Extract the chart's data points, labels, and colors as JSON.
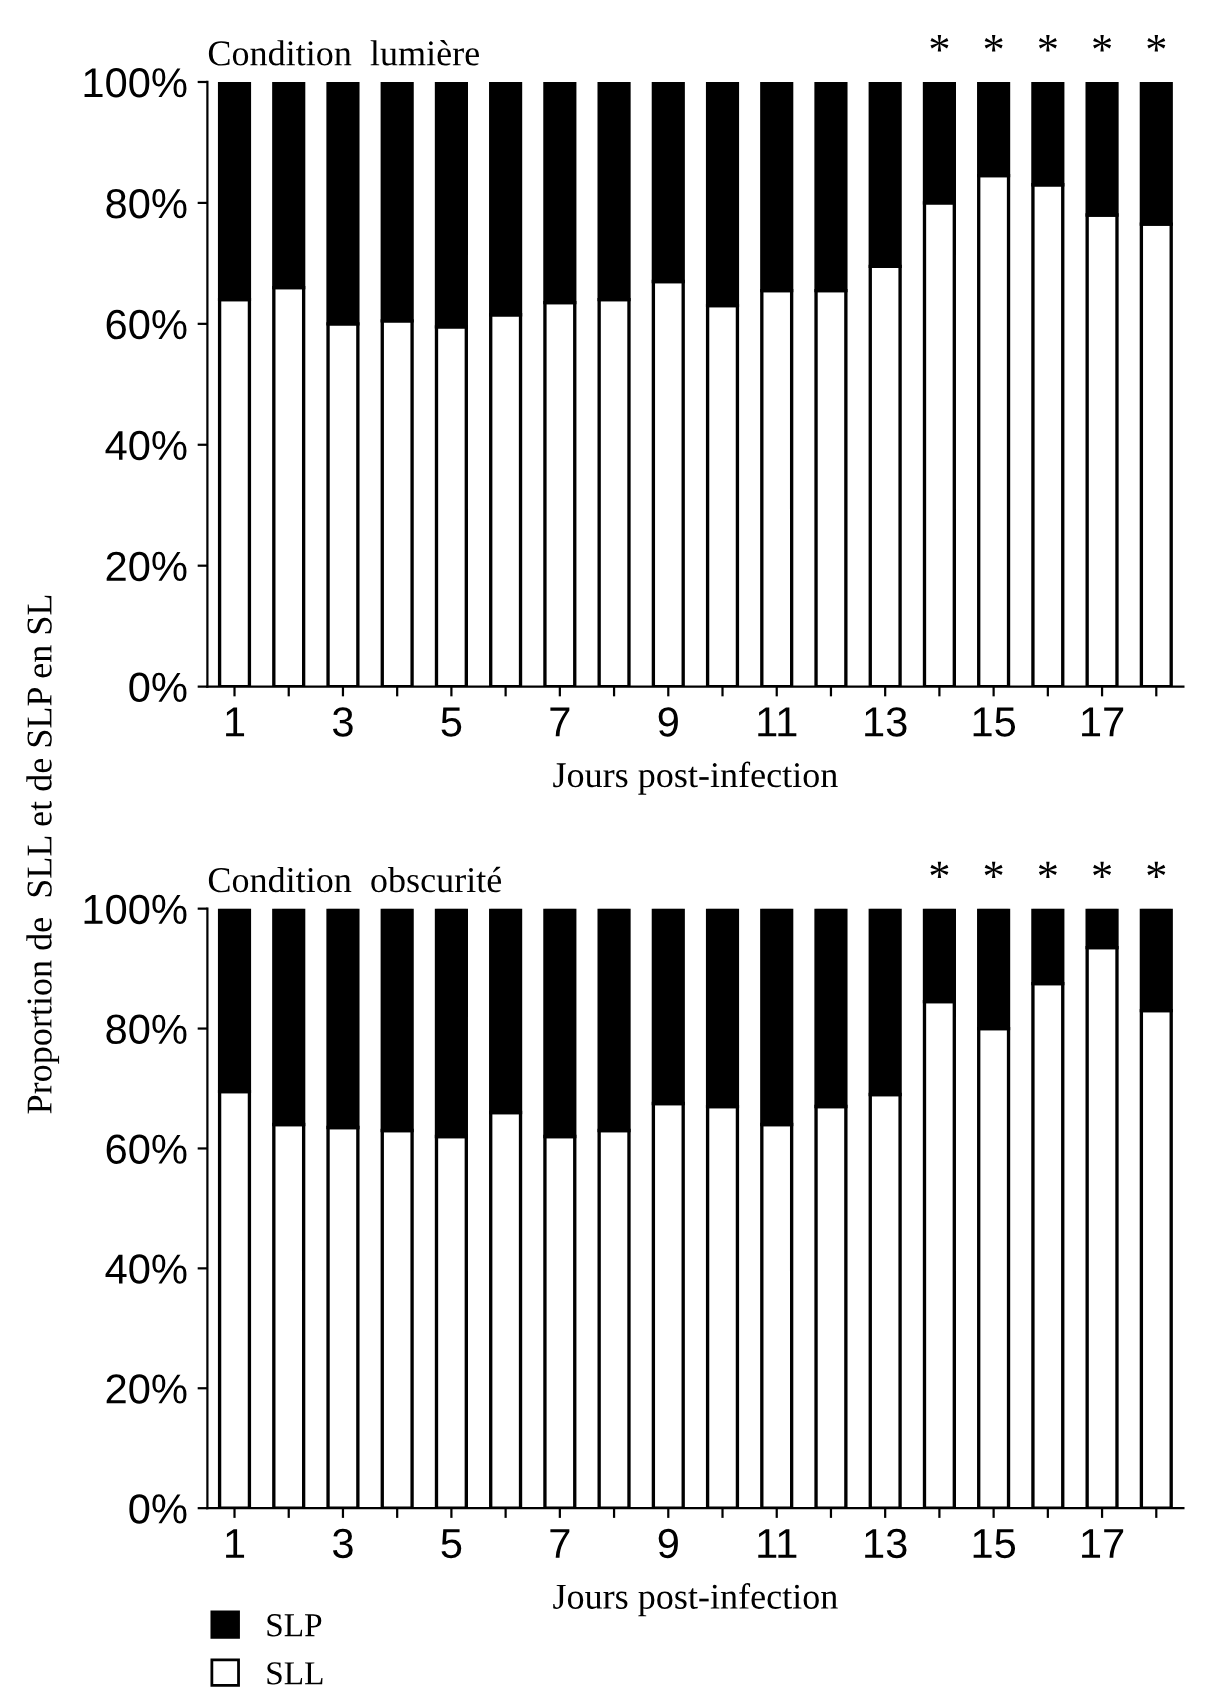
{
  "chart_data": [
    {
      "type": "bar",
      "stacked": true,
      "title": "Condition  lumière",
      "xlabel": "Jours post-infection",
      "ylabel": "Proportion de  SLL et de SLP en SL",
      "categories": [
        "1",
        null,
        "3",
        null,
        "5",
        null,
        "7",
        null,
        "9",
        null,
        "11",
        null,
        "13",
        null,
        "15",
        null,
        "17",
        null
      ],
      "series": [
        {
          "name": "SLL",
          "color": "#ffffff",
          "values": [
            64,
            66,
            60,
            60.5,
            59.5,
            61.5,
            63.5,
            64,
            67,
            63,
            65.5,
            65.5,
            69.5,
            80,
            84.5,
            83,
            78,
            76.5
          ]
        },
        {
          "name": "SLP",
          "color": "#000000",
          "values": [
            36,
            34,
            40,
            39.5,
            40.5,
            38.5,
            36.5,
            36,
            33,
            37,
            34.5,
            34.5,
            30.5,
            20,
            15.5,
            17,
            22,
            23.5
          ],
          "value_labels": [
            null,
            null,
            null,
            null,
            null,
            null,
            null,
            null,
            null,
            null,
            null,
            null,
            null,
            "*",
            "*",
            "*",
            "*",
            "*"
          ]
        }
      ],
      "ylim": [
        0,
        100
      ],
      "yticks": [
        {
          "value": 0,
          "label": "0%"
        },
        {
          "value": 20,
          "label": "20%"
        },
        {
          "value": 40,
          "label": "40%"
        },
        {
          "value": 60,
          "label": "60%"
        },
        {
          "value": 80,
          "label": "80%"
        },
        {
          "value": 100,
          "label": "100%"
        }
      ],
      "grid": false,
      "legend": "bottom left"
    },
    {
      "type": "bar",
      "stacked": true,
      "title": "Condition  obscurité",
      "xlabel": "Jours post-infection",
      "categories": [
        "1",
        null,
        "3",
        null,
        "5",
        null,
        "7",
        null,
        "9",
        null,
        "11",
        null,
        "13",
        null,
        "15",
        null,
        "17",
        null
      ],
      "series": [
        {
          "color": "#ffffff",
          "values": [
            69.5,
            64,
            63.5,
            63,
            62,
            66,
            62,
            63,
            67.5,
            67,
            64,
            67,
            69,
            84.5,
            80,
            87.5,
            93.5,
            83
          ]
        },
        {
          "color": "#000000",
          "values": [
            30.5,
            36,
            36.5,
            37,
            38,
            34,
            38,
            37,
            32.5,
            33,
            36,
            33,
            31,
            15.5,
            20,
            12.5,
            6.5,
            17
          ],
          "value_labels": [
            null,
            null,
            null,
            null,
            null,
            null,
            null,
            null,
            null,
            null,
            null,
            null,
            null,
            "*",
            "*",
            "*",
            "*",
            "*"
          ]
        }
      ],
      "ylim": [
        0,
        100
      ],
      "yticks": [
        {
          "value": 0,
          "label": "0%"
        },
        {
          "value": 20,
          "label": "20%"
        },
        {
          "value": 40,
          "label": "40%"
        },
        {
          "value": 60,
          "label": "60%"
        },
        {
          "value": 80,
          "label": "80%"
        },
        {
          "value": 100,
          "label": "100%"
        }
      ],
      "grid": false
    }
  ]
}
